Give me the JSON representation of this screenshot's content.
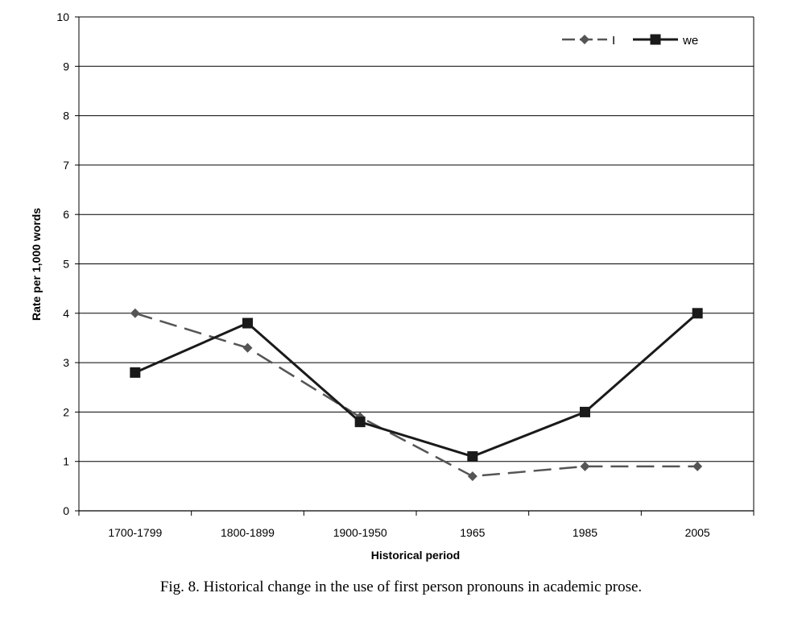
{
  "chart_data": {
    "type": "line",
    "categories": [
      "1700-1799",
      "1800-1899",
      "1900-1950",
      "1965",
      "1985",
      "2005"
    ],
    "series": [
      {
        "name": "I",
        "values": [
          4.0,
          3.3,
          1.9,
          0.7,
          0.9,
          0.9
        ],
        "style": "dashed",
        "marker": "diamond",
        "color": "#555555"
      },
      {
        "name": "we",
        "values": [
          2.8,
          3.8,
          1.8,
          1.1,
          2.0,
          4.0
        ],
        "style": "solid",
        "marker": "square",
        "color": "#1a1a1a"
      }
    ],
    "ylim": [
      0,
      10
    ],
    "yticks": [
      "0",
      "1",
      "2",
      "3",
      "4",
      "5",
      "6",
      "7",
      "8",
      "9",
      "10"
    ],
    "xlabel": "Historical period",
    "ylabel": "Rate per 1,000 words",
    "grid": true,
    "legend": "top-right"
  },
  "caption": "Fig. 8.  Historical change in the use of first person pronouns in academic prose."
}
